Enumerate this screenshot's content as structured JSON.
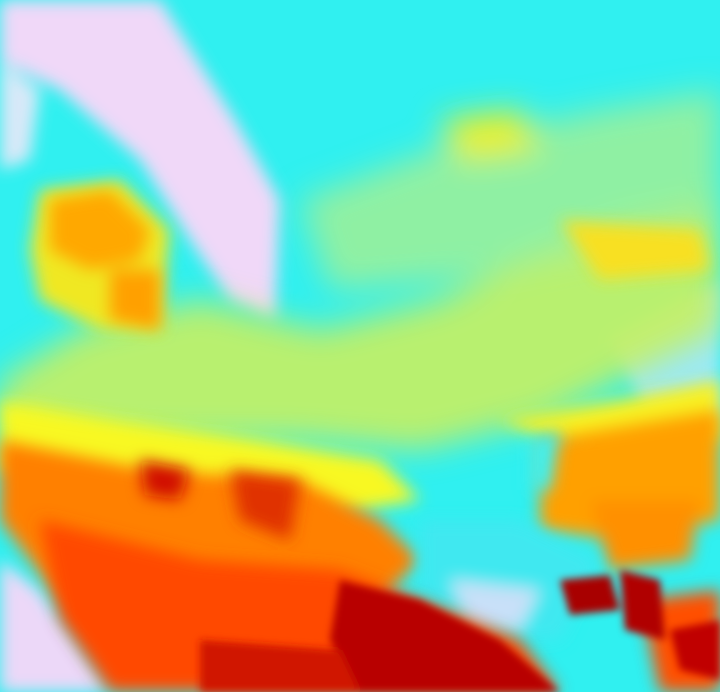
{
  "image": {
    "kind": "false-color satellite thermal image",
    "palette": {
      "cold_lavender": "#f0d8f8",
      "cyan": "#30f0f0",
      "green_yellow": "#c8f060",
      "yellow": "#f8f820",
      "orange": "#ffa000",
      "red_orange": "#ff5000",
      "red": "#e01000",
      "dark_red": "#b00000"
    }
  }
}
